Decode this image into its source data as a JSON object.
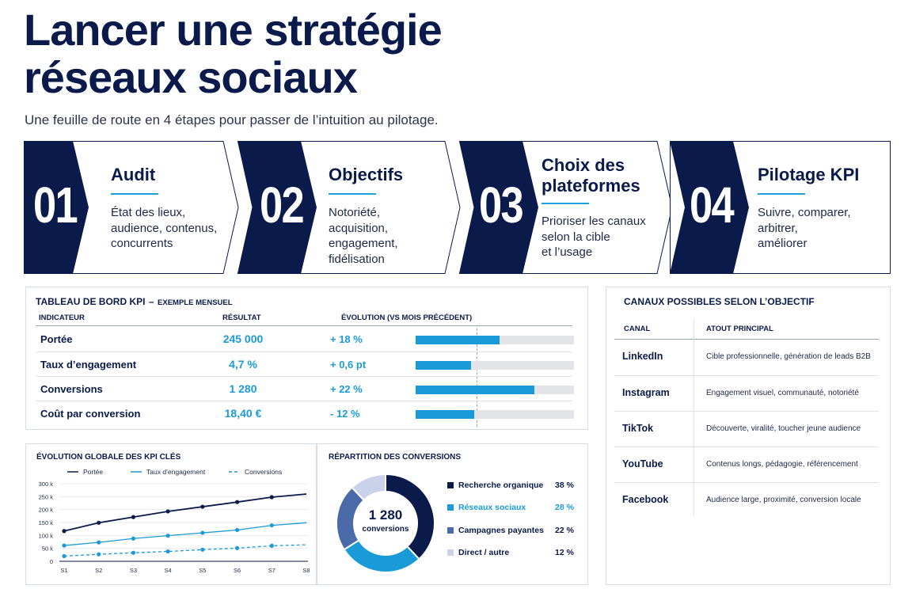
{
  "title": {
    "line1": "Lancer une stratégie",
    "line2": "réseaux sociaux"
  },
  "subtitle": "Une feuille de route en 4 étapes pour passer de l’intuition au pilotage.",
  "colors": {
    "navy": "#0a1a4a",
    "cyan": "#1a9bd7",
    "steel": "#4a6aa8",
    "pale": "#c9d2ea",
    "track": "#e2e4e8"
  },
  "steps": [
    {
      "num": "01",
      "title1": "Audit",
      "title2": "",
      "desc": [
        "État des lieux,",
        "audience, contenus,",
        "concurrents"
      ]
    },
    {
      "num": "02",
      "title1": "Objectifs",
      "title2": "",
      "desc": [
        "Notoriété,",
        "acquisition,",
        "engagement,",
        "fidélisation"
      ]
    },
    {
      "num": "03",
      "title1": "Choix des",
      "title2": "plateformes",
      "desc": [
        "Prioriser les canaux",
        "selon la cible",
        "et l’usage"
      ]
    },
    {
      "num": "04",
      "title1": "Pilotage KPI",
      "title2": "",
      "desc": [
        "Suivre, comparer,",
        "arbitrer,",
        "améliorer"
      ]
    }
  ],
  "kpi_table": {
    "title": "TABLEAU DE BORD KPI",
    "title_sep": "–",
    "title_suffix": "EXEMPLE MENSUEL",
    "headers": {
      "indicator": "INDICATEUR",
      "result": "RÉSULTAT",
      "evolution": "ÉVOLUTION (VS MOIS PRÉCÉDENT)"
    },
    "rows": [
      {
        "indicator": "Portée",
        "result": "245 000",
        "evolution": "+ 18 %",
        "bar": 0.53
      },
      {
        "indicator": "Taux d’engagement",
        "result": "4,7 %",
        "evolution": "+ 0,6 pt",
        "bar": 0.35
      },
      {
        "indicator": "Conversions",
        "result": "1 280",
        "evolution": "+ 22 %",
        "bar": 0.75
      },
      {
        "indicator": "Coût par conversion",
        "result": "18,40 €",
        "evolution": "- 12 %",
        "bar": 0.37
      }
    ]
  },
  "channels": {
    "title": "CANAUX POSSIBLES SELON L’OBJECTIF",
    "headers": {
      "channel": "CANAL",
      "strength": "ATOUT PRINCIPAL"
    },
    "rows": [
      {
        "channel": "LinkedIn",
        "strength": "Cible professionnelle, génération de leads B2B"
      },
      {
        "channel": "Instagram",
        "strength": "Engagement visuel, communauté, notoriété"
      },
      {
        "channel": "TikTok",
        "strength": "Découverte, viralité, toucher jeune audience"
      },
      {
        "channel": "YouTube",
        "strength": "Contenus longs, pédagogie, référencement"
      },
      {
        "channel": "Facebook",
        "strength": "Audience large, proximité, conversion locale"
      }
    ]
  },
  "chart_data": [
    {
      "type": "line",
      "title": "ÉVOLUTION GLOBALE DES KPI CLÉS",
      "categories": [
        "S1",
        "S2",
        "S3",
        "S4",
        "S5",
        "S6",
        "S7",
        "S8"
      ],
      "y_ticks": [
        "300 k",
        "250 k",
        "200 k",
        "150 k",
        "100 k",
        "50 k",
        "0"
      ],
      "ylim": [
        0,
        300000
      ],
      "legend_position": "top",
      "series": [
        {
          "name": "Portée",
          "style": "solid",
          "color": "#0a1a4a",
          "values": [
            117000,
            149000,
            171000,
            193000,
            211000,
            229000,
            248000,
            260000
          ]
        },
        {
          "name": "Taux d’engagement",
          "style": "solid",
          "color": "#1a9bd7",
          "values": [
            61000,
            73000,
            88000,
            99000,
            110000,
            121000,
            139000,
            149000
          ]
        },
        {
          "name": "Conversions",
          "style": "dashed",
          "color": "#1a9bd7",
          "values": [
            20000,
            27000,
            33000,
            38000,
            45000,
            51000,
            60000,
            64000
          ]
        }
      ]
    },
    {
      "type": "pie",
      "title": "RÉPARTITION DES CONVERSIONS",
      "center_value": "1 280",
      "center_label": "conversions",
      "slices": [
        {
          "label": "Recherche organique",
          "value": 38,
          "display": "38 %",
          "color": "#0a1a4a"
        },
        {
          "label": "Réseaux sociaux",
          "value": 28,
          "display": "28 %",
          "color": "#1a9bd7"
        },
        {
          "label": "Campagnes payantes",
          "value": 22,
          "display": "22 %",
          "color": "#4a6aa8"
        },
        {
          "label": "Direct / autre",
          "value": 12,
          "display": "12 %",
          "color": "#c9d2ea"
        }
      ]
    }
  ]
}
